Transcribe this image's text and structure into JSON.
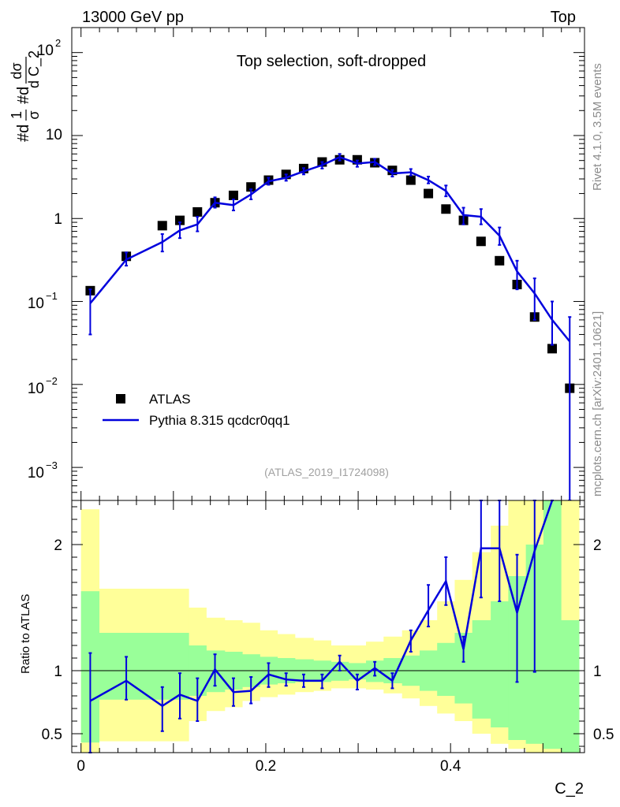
{
  "header": {
    "left": "13000 GeV pp",
    "right": "Top"
  },
  "side_labels": {
    "rivet": "Rivet 4.1.0,  3.5M events",
    "mcplots": "mcplots.cern.ch [arXiv:2401.10621]"
  },
  "chart_data": [
    {
      "type": "scatter",
      "title": "Top selection, soft-dropped",
      "analysis_tag": "(ATLAS_2019_I1724098)",
      "ylabel": "#d1/σ #d dσ/d C_2",
      "ylabel_parts": {
        "left": "#d",
        "num1": "1",
        "den1": "σ",
        "mid": "#d",
        "num2": "dσ",
        "den2": "d C_2"
      },
      "yscale": "log",
      "ylim": [
        0.0004,
        200
      ],
      "xlim": [
        -0.01,
        0.545
      ],
      "y_tick_labels": {
        "e_m3": "10",
        "e_m3_exp": "−3",
        "e_m2": "10",
        "e_m2_exp": "−2",
        "e_m1": "10",
        "e_m1_exp": "−1",
        "one": "1",
        "ten": "10",
        "e_2": "10",
        "e_2_exp": "2"
      },
      "legend": {
        "position": "lower-left",
        "data_label": "ATLAS",
        "mc_label": "Pythia 8.315 qcdcr0qq1"
      },
      "data_series": {
        "name": "ATLAS",
        "x": [
          0.01,
          0.049,
          0.088,
          0.107,
          0.126,
          0.145,
          0.165,
          0.184,
          0.203,
          0.222,
          0.241,
          0.261,
          0.28,
          0.299,
          0.318,
          0.337,
          0.357,
          0.376,
          0.395,
          0.414,
          0.433,
          0.453,
          0.472,
          0.491,
          0.51,
          0.529
        ],
        "y": [
          0.135,
          0.35,
          0.82,
          0.95,
          1.2,
          1.55,
          1.9,
          2.4,
          2.9,
          3.4,
          4.0,
          4.8,
          5.1,
          5.1,
          4.7,
          3.8,
          2.9,
          2.0,
          1.3,
          0.95,
          0.53,
          0.31,
          0.16,
          0.065,
          0.027,
          0.009
        ]
      },
      "mc_series": {
        "name": "Pythia 8.315 qcdcr0qq1",
        "x": [
          0.01,
          0.049,
          0.088,
          0.107,
          0.126,
          0.145,
          0.165,
          0.184,
          0.203,
          0.222,
          0.241,
          0.261,
          0.28,
          0.299,
          0.318,
          0.337,
          0.357,
          0.376,
          0.395,
          0.414,
          0.433,
          0.453,
          0.472,
          0.491,
          0.51,
          0.529
        ],
        "y": [
          0.095,
          0.32,
          0.52,
          0.72,
          0.85,
          1.55,
          1.45,
          1.95,
          2.8,
          3.1,
          3.7,
          4.4,
          5.5,
          4.6,
          4.8,
          3.5,
          3.6,
          2.9,
          2.15,
          1.1,
          1.05,
          0.62,
          0.23,
          0.125,
          0.06,
          0.033
        ],
        "err_lo": [
          0.04,
          0.27,
          0.4,
          0.58,
          0.7,
          1.35,
          1.25,
          1.7,
          2.55,
          2.85,
          3.4,
          4.0,
          5.0,
          4.2,
          4.4,
          3.2,
          3.3,
          2.65,
          1.85,
          0.85,
          0.85,
          0.48,
          0.14,
          0.06,
          0.03,
          0.0003
        ],
        "err_hi": [
          0.14,
          0.39,
          0.65,
          0.9,
          1.05,
          1.8,
          1.7,
          2.25,
          3.1,
          3.4,
          4.05,
          4.8,
          6.0,
          5.0,
          5.25,
          3.85,
          3.95,
          3.2,
          2.5,
          1.35,
          1.3,
          0.78,
          0.31,
          0.19,
          0.1,
          0.065
        ]
      }
    },
    {
      "type": "line",
      "ylabel": "Ratio to ATLAS",
      "xlabel": "C_2",
      "ylim": [
        0.35,
        2.35
      ],
      "xlim": [
        -0.01,
        0.545
      ],
      "x_ticks": [
        0,
        0.2,
        0.4
      ],
      "x_tick_labels": [
        "0",
        "0.2",
        "0.4"
      ],
      "y_ticks": [
        0.5,
        1,
        2
      ],
      "y_tick_labels": [
        "0.5",
        "1",
        "2"
      ],
      "bin_edges": [
        0,
        0.0195,
        0.0785,
        0.0975,
        0.1165,
        0.1355,
        0.1555,
        0.1745,
        0.1935,
        0.2125,
        0.2315,
        0.2515,
        0.2705,
        0.2895,
        0.3085,
        0.3275,
        0.3475,
        0.3665,
        0.3855,
        0.4045,
        0.4235,
        0.4435,
        0.4625,
        0.4815,
        0.5005,
        0.5195,
        0.539
      ],
      "band_green_lo": [
        0.43,
        0.77,
        0.77,
        0.77,
        0.8,
        0.83,
        0.85,
        0.87,
        0.89,
        0.9,
        0.91,
        0.91,
        0.92,
        0.93,
        0.91,
        0.9,
        0.88,
        0.84,
        0.8,
        0.74,
        0.62,
        0.55,
        0.45,
        0.42,
        0.38,
        0.3
      ],
      "band_green_hi": [
        1.63,
        1.3,
        1.3,
        1.3,
        1.2,
        1.16,
        1.15,
        1.13,
        1.11,
        1.1,
        1.09,
        1.08,
        1.07,
        1.06,
        1.08,
        1.1,
        1.12,
        1.16,
        1.22,
        1.3,
        1.4,
        1.55,
        1.75,
        2.0,
        2.35,
        1.4
      ],
      "band_yellow_lo": [
        0.3,
        0.44,
        0.44,
        0.44,
        0.6,
        0.68,
        0.71,
        0.76,
        0.79,
        0.81,
        0.83,
        0.84,
        0.86,
        0.86,
        0.85,
        0.82,
        0.78,
        0.72,
        0.66,
        0.6,
        0.5,
        0.42,
        0.38,
        0.35,
        0.3,
        0.3
      ],
      "band_yellow_hi": [
        2.28,
        1.65,
        1.65,
        1.65,
        1.5,
        1.42,
        1.4,
        1.38,
        1.32,
        1.29,
        1.26,
        1.24,
        1.2,
        1.2,
        1.23,
        1.27,
        1.32,
        1.4,
        1.55,
        1.72,
        1.94,
        2.15,
        2.35,
        2.35,
        2.35,
        2.35
      ],
      "series": [
        {
          "name": "Pythia 8.315 qcdcr0qq1 / ATLAS",
          "x": [
            0.01,
            0.049,
            0.088,
            0.107,
            0.126,
            0.145,
            0.165,
            0.184,
            0.203,
            0.222,
            0.241,
            0.261,
            0.28,
            0.299,
            0.318,
            0.337,
            0.357,
            0.376,
            0.395,
            0.414,
            0.433,
            0.453,
            0.472,
            0.491,
            0.51
          ],
          "y": [
            0.76,
            0.92,
            0.72,
            0.81,
            0.76,
            1.01,
            0.83,
            0.84,
            0.97,
            0.93,
            0.92,
            0.92,
            1.07,
            0.92,
            1.02,
            0.92,
            1.24,
            1.48,
            1.71,
            1.17,
            1.97,
            1.97,
            1.46,
            1.95,
            2.35
          ],
          "err_lo": [
            0.35,
            0.77,
            0.52,
            0.62,
            0.6,
            0.88,
            0.72,
            0.74,
            0.87,
            0.88,
            0.87,
            0.86,
            1.0,
            0.85,
            0.96,
            0.86,
            1.15,
            1.35,
            1.52,
            1.07,
            1.58,
            1.55,
            0.91,
            0.99,
            2.35
          ],
          "err_hi": [
            1.14,
            1.11,
            0.87,
            0.98,
            0.94,
            1.13,
            0.94,
            0.95,
            1.06,
            0.98,
            0.97,
            0.97,
            1.12,
            0.97,
            1.07,
            0.98,
            1.32,
            1.68,
            1.9,
            1.27,
            2.35,
            2.35,
            1.92,
            2.35,
            2.35
          ]
        }
      ]
    }
  ]
}
